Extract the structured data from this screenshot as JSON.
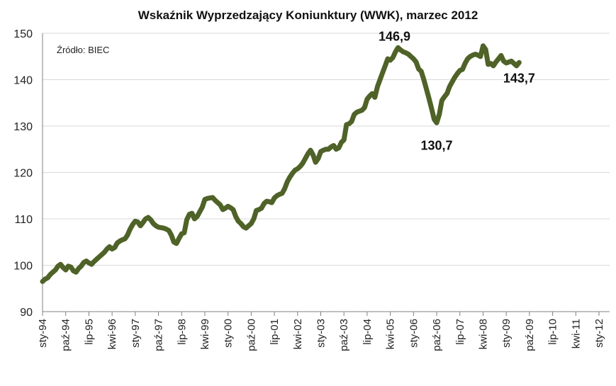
{
  "chart_data": {
    "type": "line",
    "title": "Wskaźnik Wyprzedzający Koniunktury (WWK), marzec 2012",
    "source_note": "Źródło: BIEC",
    "xlabel": "",
    "ylabel": "",
    "ylim": [
      90,
      150
    ],
    "yticks": [
      90,
      100,
      110,
      120,
      130,
      140,
      150
    ],
    "grid": true,
    "legend": "none",
    "line_color": "#4f6228",
    "x_tick_labels": [
      "sty-94",
      "paź-94",
      "lip-95",
      "kwi-96",
      "sty-97",
      "paź-97",
      "lip-98",
      "kwi-99",
      "sty-00",
      "paź-00",
      "lip-01",
      "kwi-02",
      "sty-03",
      "paź-03",
      "lip-04",
      "kwi-05",
      "sty-06",
      "paź-06",
      "lip-07",
      "kwi-08",
      "sty-09",
      "paź-09",
      "lip-10",
      "kwi-11",
      "sty-12"
    ],
    "x_tick_months": [
      0,
      9,
      18,
      27,
      36,
      45,
      54,
      63,
      72,
      81,
      90,
      99,
      108,
      117,
      126,
      135,
      144,
      153,
      162,
      171,
      180,
      189,
      198,
      207,
      216
    ],
    "x_range_months": [
      0,
      218
    ],
    "series": [
      {
        "name": "",
        "points": [
          [
            0,
            96.5
          ],
          [
            1,
            97.0
          ],
          [
            2,
            97.3
          ],
          [
            3,
            98.0
          ],
          [
            4,
            98.5
          ],
          [
            5,
            99.0
          ],
          [
            6,
            99.8
          ],
          [
            7,
            100.2
          ],
          [
            8,
            99.5
          ],
          [
            9,
            99.0
          ],
          [
            10,
            99.8
          ],
          [
            11,
            99.6
          ],
          [
            12,
            98.8
          ],
          [
            13,
            98.5
          ],
          [
            14,
            99.3
          ],
          [
            15,
            99.8
          ],
          [
            16,
            100.6
          ],
          [
            17,
            100.9
          ],
          [
            18,
            100.5
          ],
          [
            19,
            100.2
          ],
          [
            20,
            100.8
          ],
          [
            21,
            101.3
          ],
          [
            22,
            101.8
          ],
          [
            23,
            102.3
          ],
          [
            24,
            102.8
          ],
          [
            25,
            103.5
          ],
          [
            26,
            104.0
          ],
          [
            27,
            103.5
          ],
          [
            28,
            103.8
          ],
          [
            29,
            104.8
          ],
          [
            30,
            105.2
          ],
          [
            31,
            105.5
          ],
          [
            32,
            105.7
          ],
          [
            33,
            106.5
          ],
          [
            34,
            107.8
          ],
          [
            35,
            108.8
          ],
          [
            36,
            109.5
          ],
          [
            37,
            109.3
          ],
          [
            38,
            108.5
          ],
          [
            39,
            109.2
          ],
          [
            40,
            110.0
          ],
          [
            41,
            110.3
          ],
          [
            42,
            109.8
          ],
          [
            43,
            109.0
          ],
          [
            44,
            108.5
          ],
          [
            45,
            108.2
          ],
          [
            46,
            108.1
          ],
          [
            47,
            108.0
          ],
          [
            48,
            107.8
          ],
          [
            49,
            107.5
          ],
          [
            50,
            106.5
          ],
          [
            51,
            105.0
          ],
          [
            52,
            104.7
          ],
          [
            53,
            105.8
          ],
          [
            54,
            106.8
          ],
          [
            55,
            107.0
          ],
          [
            56,
            109.8
          ],
          [
            57,
            111.0
          ],
          [
            58,
            111.2
          ],
          [
            59,
            110.0
          ],
          [
            60,
            110.5
          ],
          [
            61,
            111.5
          ],
          [
            62,
            112.5
          ],
          [
            63,
            114.2
          ],
          [
            64,
            114.4
          ],
          [
            65,
            114.5
          ],
          [
            66,
            114.6
          ],
          [
            67,
            114.0
          ],
          [
            68,
            113.5
          ],
          [
            69,
            113.0
          ],
          [
            70,
            112.0
          ],
          [
            71,
            112.3
          ],
          [
            72,
            112.7
          ],
          [
            73,
            112.4
          ],
          [
            74,
            112.0
          ],
          [
            75,
            110.5
          ],
          [
            76,
            109.5
          ],
          [
            77,
            109.0
          ],
          [
            78,
            108.3
          ],
          [
            79,
            108.0
          ],
          [
            80,
            108.5
          ],
          [
            81,
            109.0
          ],
          [
            82,
            110.0
          ],
          [
            83,
            111.8
          ],
          [
            84,
            112.0
          ],
          [
            85,
            112.3
          ],
          [
            86,
            113.3
          ],
          [
            87,
            113.8
          ],
          [
            88,
            113.7
          ],
          [
            89,
            113.5
          ],
          [
            90,
            114.5
          ],
          [
            91,
            115.0
          ],
          [
            92,
            115.3
          ],
          [
            93,
            115.5
          ],
          [
            94,
            116.5
          ],
          [
            95,
            118.0
          ],
          [
            96,
            119.0
          ],
          [
            97,
            119.8
          ],
          [
            98,
            120.5
          ],
          [
            99,
            120.8
          ],
          [
            100,
            121.3
          ],
          [
            101,
            122.0
          ],
          [
            102,
            123.0
          ],
          [
            103,
            124.0
          ],
          [
            104,
            124.8
          ],
          [
            105,
            123.8
          ],
          [
            106,
            122.2
          ],
          [
            107,
            123.0
          ],
          [
            108,
            124.5
          ],
          [
            109,
            124.8
          ],
          [
            110,
            125.0
          ],
          [
            111,
            125.0
          ],
          [
            112,
            125.5
          ],
          [
            113,
            125.8
          ],
          [
            114,
            125.0
          ],
          [
            115,
            125.3
          ],
          [
            116,
            126.5
          ],
          [
            117,
            127.0
          ],
          [
            118,
            130.3
          ],
          [
            119,
            130.5
          ],
          [
            120,
            131.0
          ],
          [
            121,
            132.5
          ],
          [
            122,
            133.0
          ],
          [
            123,
            133.2
          ],
          [
            124,
            133.4
          ],
          [
            125,
            134.0
          ],
          [
            126,
            135.8
          ],
          [
            127,
            136.5
          ],
          [
            128,
            137.0
          ],
          [
            129,
            136.2
          ],
          [
            130,
            138.5
          ],
          [
            131,
            140.0
          ],
          [
            132,
            141.5
          ],
          [
            133,
            143.0
          ],
          [
            134,
            144.5
          ],
          [
            135,
            144.2
          ],
          [
            136,
            144.8
          ],
          [
            137,
            146.0
          ],
          [
            138,
            146.9
          ],
          [
            139,
            146.4
          ],
          [
            140,
            146.0
          ],
          [
            141,
            145.8
          ],
          [
            142,
            145.5
          ],
          [
            143,
            145.0
          ],
          [
            144,
            144.5
          ],
          [
            145,
            143.8
          ],
          [
            146,
            142.3
          ],
          [
            147,
            141.8
          ],
          [
            148,
            140.0
          ],
          [
            149,
            138.0
          ],
          [
            150,
            136.0
          ],
          [
            151,
            133.8
          ],
          [
            152,
            131.5
          ],
          [
            153,
            130.7
          ],
          [
            154,
            132.5
          ],
          [
            155,
            135.5
          ],
          [
            156,
            136.3
          ],
          [
            157,
            137.0
          ],
          [
            158,
            138.5
          ],
          [
            159,
            139.5
          ],
          [
            160,
            140.5
          ],
          [
            161,
            141.3
          ],
          [
            162,
            142.0
          ],
          [
            163,
            142.2
          ],
          [
            164,
            143.5
          ],
          [
            165,
            144.5
          ],
          [
            166,
            145.0
          ],
          [
            167,
            145.3
          ],
          [
            168,
            145.5
          ],
          [
            169,
            145.3
          ],
          [
            170,
            145.0
          ],
          [
            171,
            147.3
          ],
          [
            172,
            146.5
          ],
          [
            173,
            143.3
          ],
          [
            174,
            143.5
          ],
          [
            175,
            143.0
          ],
          [
            176,
            143.8
          ],
          [
            177,
            144.5
          ],
          [
            178,
            145.2
          ],
          [
            179,
            144.0
          ],
          [
            180,
            143.6
          ],
          [
            181,
            143.8
          ],
          [
            182,
            144.0
          ],
          [
            183,
            143.5
          ],
          [
            184,
            143.0
          ],
          [
            185,
            143.7
          ]
        ]
      }
    ],
    "annotations": [
      {
        "label": "146,9",
        "x_month": 138,
        "value": 146.9
      },
      {
        "label": "130,7",
        "x_month": 153,
        "value": 130.7
      },
      {
        "label": "143,7",
        "x_month": 185,
        "value": 143.7
      }
    ]
  }
}
